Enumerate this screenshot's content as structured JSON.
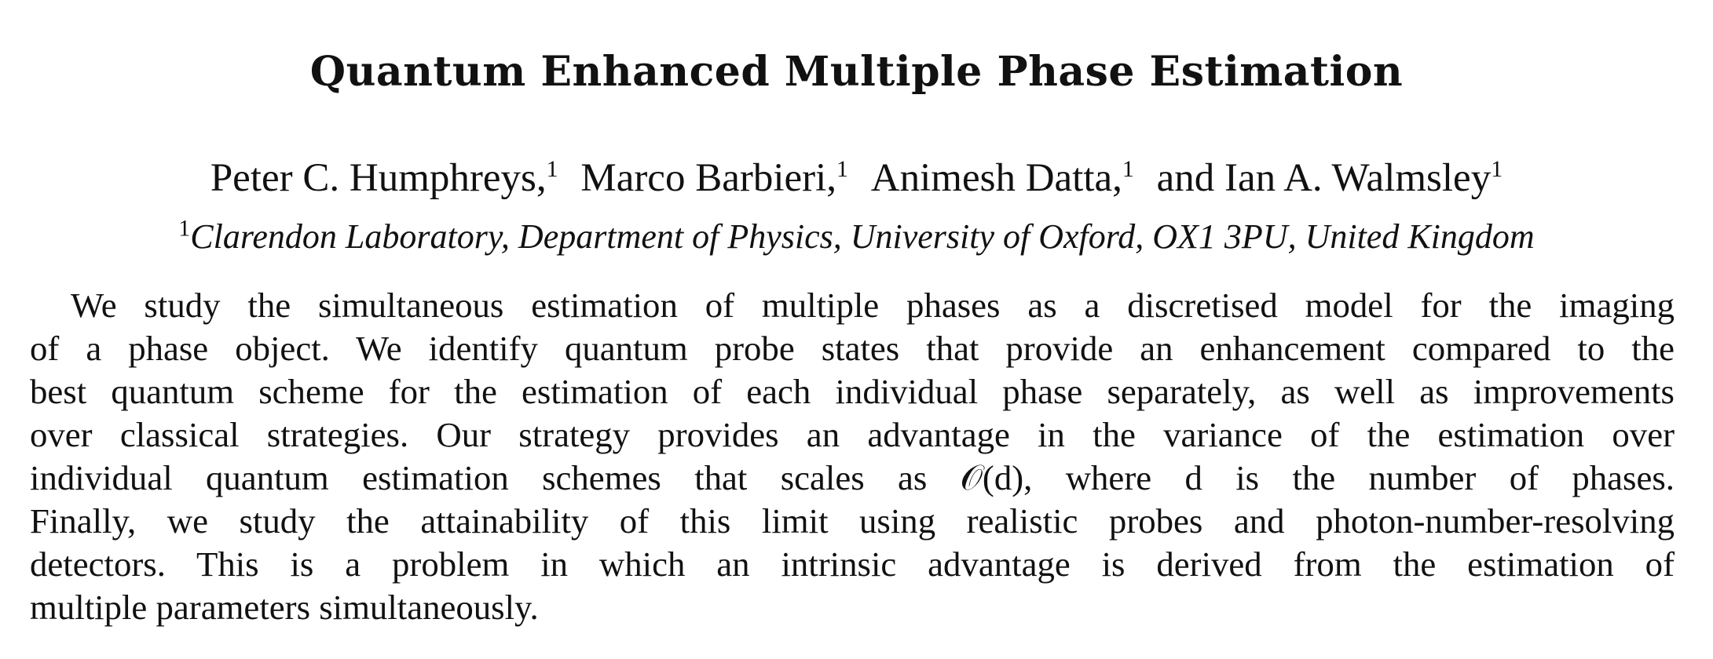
{
  "paper": {
    "title": "Quantum Enhanced Multiple Phase Estimation",
    "authors": [
      {
        "name": "Peter C. Humphreys,",
        "affil": "1"
      },
      {
        "name": "Marco Barbieri,",
        "affil": "1"
      },
      {
        "name": "Animesh Datta,",
        "affil": "1"
      },
      {
        "name": "and Ian A. Walmsley",
        "affil": "1"
      }
    ],
    "affiliation": {
      "mark": "1",
      "text": "Clarendon Laboratory, Department of Physics, University of Oxford, OX1 3PU, United Kingdom"
    },
    "abstract_lines": [
      "We study the simultaneous estimation of multiple phases as a discretised model for the imaging",
      "of a phase object. We identify quantum probe states that provide an enhancement compared to the",
      "best quantum scheme for the estimation of each individual phase separately, as well as improvements",
      "over classical strategies. Our strategy provides an advantage in the variance of the estimation over",
      "individual quantum estimation schemes that scales as 𝒪(d), where d is the number of phases.",
      "Finally, we study the attainability of this limit using realistic probes and photon-number-resolving",
      "detectors. This is a problem in which an intrinsic advantage is derived from the estimation of",
      "multiple parameters simultaneously."
    ]
  }
}
